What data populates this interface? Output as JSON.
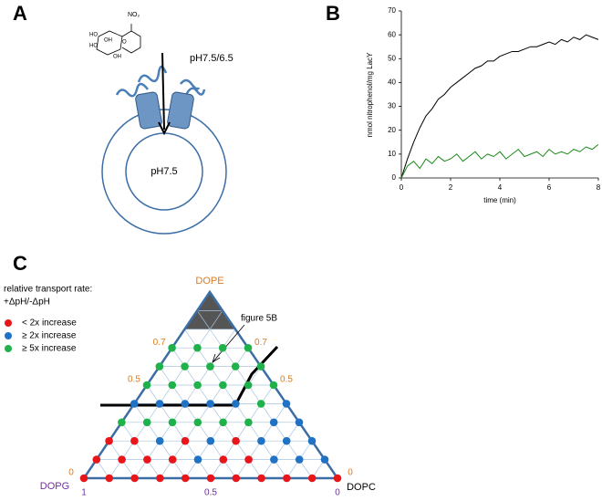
{
  "panel_a": {
    "letter": "A",
    "outside_ph": "pH7.5/6.5",
    "inside_ph": "pH7.5",
    "molecule_labels": [
      "NO₂",
      "HO",
      "HO",
      "OH",
      "O",
      "OH"
    ]
  },
  "chart_data": {
    "type": "line",
    "letter": "B",
    "x_label": "time (min)",
    "y_label": "nmol nitrophenol/mg LacY",
    "x": [
      0,
      0.25,
      0.5,
      0.75,
      1,
      1.25,
      1.5,
      1.75,
      2,
      2.25,
      2.5,
      2.75,
      3,
      3.25,
      3.5,
      3.75,
      4,
      4.25,
      4.5,
      4.75,
      5,
      5.25,
      5.5,
      5.75,
      6,
      6.25,
      6.5,
      6.75,
      7,
      7.25,
      7.5,
      7.75,
      8
    ],
    "series": [
      {
        "color": "#000000",
        "values": [
          0,
          8,
          15,
          21,
          26,
          29,
          33,
          35,
          38,
          40,
          42,
          44,
          46,
          47,
          49,
          49,
          51,
          52,
          53,
          53,
          54,
          55,
          55,
          56,
          57,
          56,
          58,
          57,
          59,
          58,
          60,
          59,
          58
        ]
      },
      {
        "color": "#1a8a1a",
        "values": [
          0,
          5,
          7,
          4,
          8,
          6,
          9,
          7,
          8,
          10,
          7,
          9,
          11,
          8,
          10,
          9,
          11,
          8,
          10,
          12,
          9,
          10,
          11,
          9,
          12,
          10,
          11,
          10,
          12,
          11,
          13,
          12,
          14
        ]
      }
    ],
    "xlim": [
      0,
      8
    ],
    "xticks": [
      0,
      2,
      4,
      6,
      8
    ],
    "ylim": [
      0,
      70
    ],
    "yticks": [
      0,
      10,
      20,
      30,
      40,
      50,
      60,
      70
    ]
  },
  "panel_c": {
    "letter": "C",
    "legend_title": [
      "relative transport rate:",
      "+ΔpH/-ΔpH"
    ],
    "legend": [
      {
        "label": "< 2x increase",
        "color": "#e8161a"
      },
      {
        "label": "≥ 2x increase",
        "color": "#1f72c4"
      },
      {
        "label": "≥ 5x increase",
        "color": "#1fb24a"
      }
    ],
    "vertices": {
      "top": "DOPE",
      "left": "DOPG",
      "right": "DOPC"
    },
    "left_ticks": [
      0.7,
      0.5,
      0
    ],
    "right_ticks": [
      0.7,
      0.5,
      0
    ],
    "bottom_ticks": [
      1,
      0.5,
      0
    ],
    "annotation": "figure 5B",
    "rows": [
      [
        0,
        0,
        0,
        0,
        0,
        0,
        0,
        0,
        0,
        0,
        0
      ],
      [
        0,
        0,
        0,
        0,
        1,
        0,
        0,
        1,
        1,
        1
      ],
      [
        0,
        0,
        1,
        0,
        1,
        0,
        1,
        1,
        1
      ],
      [
        2,
        2,
        2,
        2,
        2,
        2,
        1,
        1
      ],
      [
        1,
        1,
        1,
        1,
        1,
        2,
        1
      ],
      [
        2,
        2,
        2,
        2,
        2,
        2
      ],
      [
        2,
        2,
        2,
        2,
        2
      ],
      [
        2,
        2,
        2,
        2
      ]
    ]
  }
}
